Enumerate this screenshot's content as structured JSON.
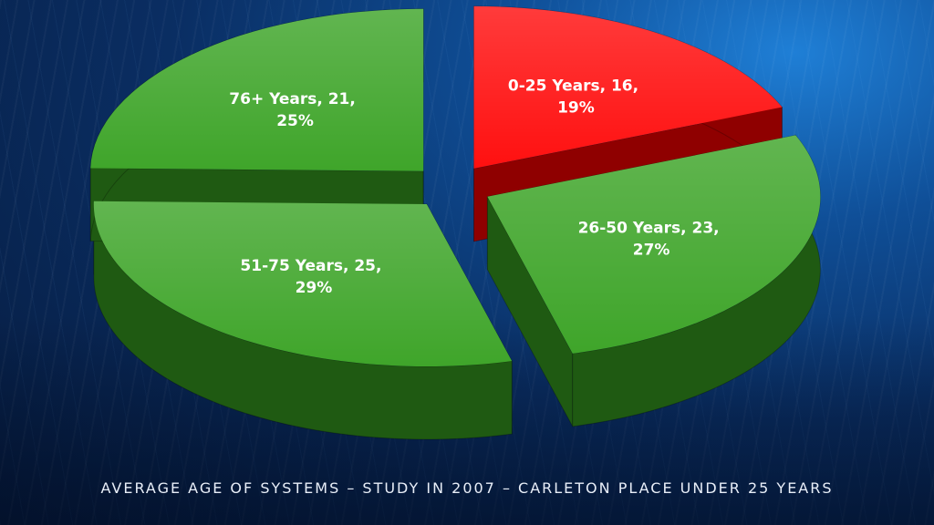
{
  "caption": "AVERAGE AGE OF SYSTEMS – STUDY IN 2007 – CARLETON PLACE UNDER 25 YEARS",
  "chart_data": {
    "type": "pie",
    "title": "",
    "categories": [
      "0-25 Years",
      "26-50 Years",
      "51-75 Years",
      "76+ Years"
    ],
    "values": [
      16,
      23,
      25,
      21
    ],
    "percent_labels": [
      "19%",
      "27%",
      "29%",
      "25%"
    ],
    "labels": [
      {
        "line1": "0-25 Years, 16,",
        "line2": "19%"
      },
      {
        "line1": "26-50 Years, 23,",
        "line2": "27%"
      },
      {
        "line1": "51-75 Years, 25,",
        "line2": "29%"
      },
      {
        "line1": "76+ Years, 21,",
        "line2": "25%"
      }
    ],
    "colors": [
      "#ff1010",
      "#3fa52a",
      "#3fa52a",
      "#3fa52a"
    ],
    "side_colors": [
      "#8f0000",
      "#1f5a12",
      "#1f5a12",
      "#1f5a12"
    ],
    "style": "3d-exploded"
  }
}
